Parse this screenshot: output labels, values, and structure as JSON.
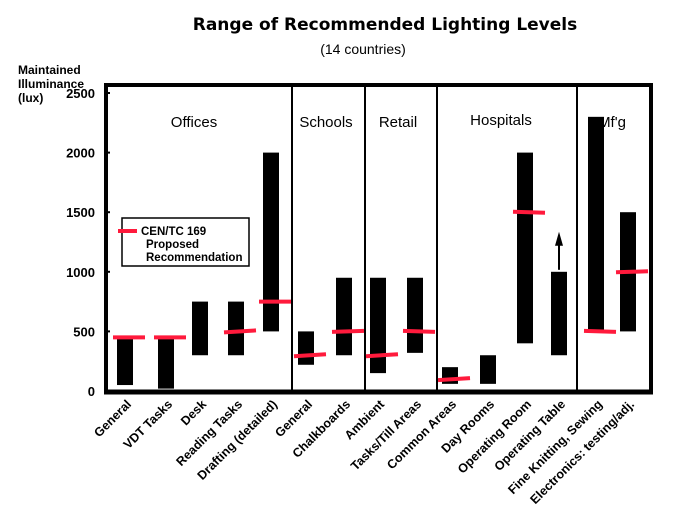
{
  "chart_data": {
    "type": "bar",
    "subtype": "floating-range",
    "title": "Range of Recommended Lighting Levels",
    "subtitle": "(14 countries)",
    "ylabel": [
      "Maintained",
      "Illuminance",
      "(lux)"
    ],
    "xlabel": "",
    "ylim": [
      0,
      2500
    ],
    "yticks": [
      0,
      500,
      1000,
      1500,
      2000,
      2500
    ],
    "grid": false,
    "legend": {
      "placement": "left-middle",
      "lines": [
        "CEN/TC 169",
        "Proposed",
        "Recommendation"
      ],
      "marker_color": "#ff1a3c"
    },
    "colors": {
      "bar": "#000000",
      "recommendation": "#ff1a3c",
      "frame": "#000000"
    },
    "sections": [
      {
        "name": "Offices",
        "categories": [
          "General",
          "VDT Tasks",
          "Desk",
          "Reading Tasks",
          "Drafting (detailed)"
        ]
      },
      {
        "name": "Schools",
        "categories": [
          "General",
          "Chalkboards"
        ]
      },
      {
        "name": "Retail",
        "categories": [
          "Ambient",
          "Tasks/Till Areas"
        ]
      },
      {
        "name": "Hospitals",
        "categories": [
          "Common Areas",
          "Day Rooms",
          "Operating Room",
          "Operating Table"
        ]
      },
      {
        "name": "Mf'g",
        "categories": [
          "Fine Knitting, Sewing",
          "Electronics: testing/adj."
        ]
      }
    ],
    "categories": [
      "General",
      "VDT Tasks",
      "Desk",
      "Reading Tasks",
      "Drafting (detailed)",
      "General",
      "Chalkboards",
      "Ambient",
      "Tasks/Till Areas",
      "Common Areas",
      "Day Rooms",
      "Operating Room",
      "Operating Table",
      "Fine Knitting, Sewing",
      "Electronics: testing/adj."
    ],
    "series": [
      {
        "name": "Range minimum (lux)",
        "values": [
          50,
          20,
          300,
          300,
          500,
          220,
          300,
          150,
          320,
          60,
          60,
          400,
          300,
          500,
          500
        ]
      },
      {
        "name": "Range maximum (lux)",
        "values": [
          450,
          450,
          750,
          750,
          2000,
          500,
          950,
          950,
          950,
          200,
          300,
          2000,
          1000,
          2300,
          1500
        ]
      },
      {
        "name": "CEN/TC 169 Proposed Recommendation (lux)",
        "values": [
          450,
          450,
          null,
          500,
          750,
          300,
          500,
          300,
          500,
          100,
          null,
          1500,
          null,
          500,
          1000
        ]
      }
    ],
    "annotations": [
      {
        "category": "Operating Table",
        "type": "up-arrow",
        "meaning": "range extends higher"
      }
    ]
  }
}
